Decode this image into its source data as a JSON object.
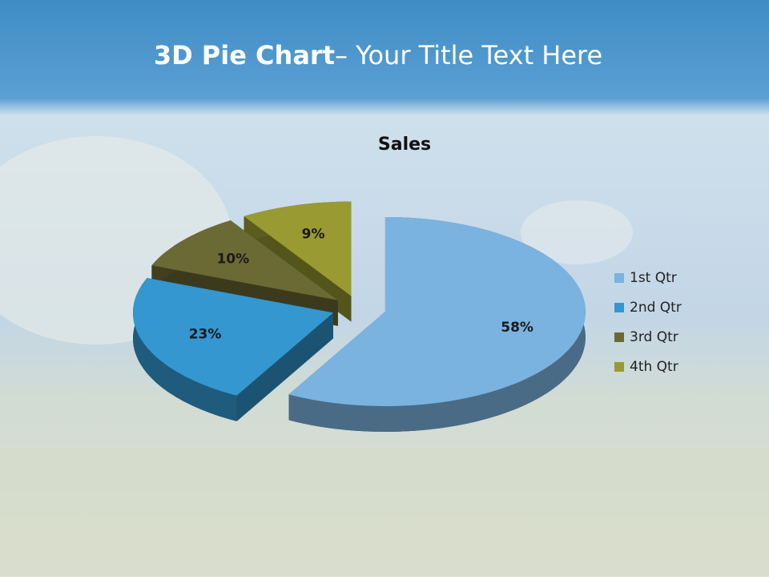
{
  "slide": {
    "title_bold": "3D Pie Chart",
    "title_rest": "– Your Title Text Here"
  },
  "chart_data": {
    "type": "pie",
    "title": "Sales",
    "categories": [
      "1st Qtr",
      "2nd Qtr",
      "3rd Qtr",
      "4th Qtr"
    ],
    "values": [
      58,
      23,
      10,
      9
    ],
    "value_labels": [
      "58%",
      "23%",
      "10%",
      "9%"
    ],
    "colors": [
      "#7ab3e0",
      "#3497cf",
      "#6b6a35",
      "#999a31"
    ],
    "legend": "right"
  }
}
